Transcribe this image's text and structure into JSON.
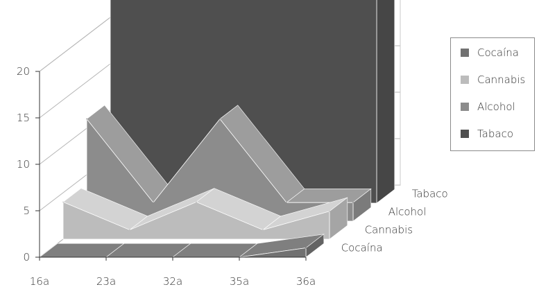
{
  "chart_data": {
    "type": "area",
    "view": "3d",
    "categories": [
      "16a",
      "23a",
      "32a",
      "35a",
      "36a"
    ],
    "ylim": [
      0,
      20
    ],
    "yticks": [
      0,
      5,
      10,
      15,
      20
    ],
    "grid": true,
    "legend_position": "right",
    "series": [
      {
        "name": "Cocaína",
        "values": [
          0,
          0,
          0,
          0,
          1
        ],
        "color": "#717171"
      },
      {
        "name": "Cannabis",
        "values": [
          4,
          1,
          4,
          1,
          3
        ],
        "color": "#bcbcbc"
      },
      {
        "name": "Alcohol",
        "values": [
          11,
          2,
          11,
          2,
          2
        ],
        "color": "#8c8c8c"
      },
      {
        "name": "Tabaco",
        "values": [
          22,
          22,
          22,
          22,
          22
        ],
        "color": "#4f4f4f"
      }
    ]
  }
}
